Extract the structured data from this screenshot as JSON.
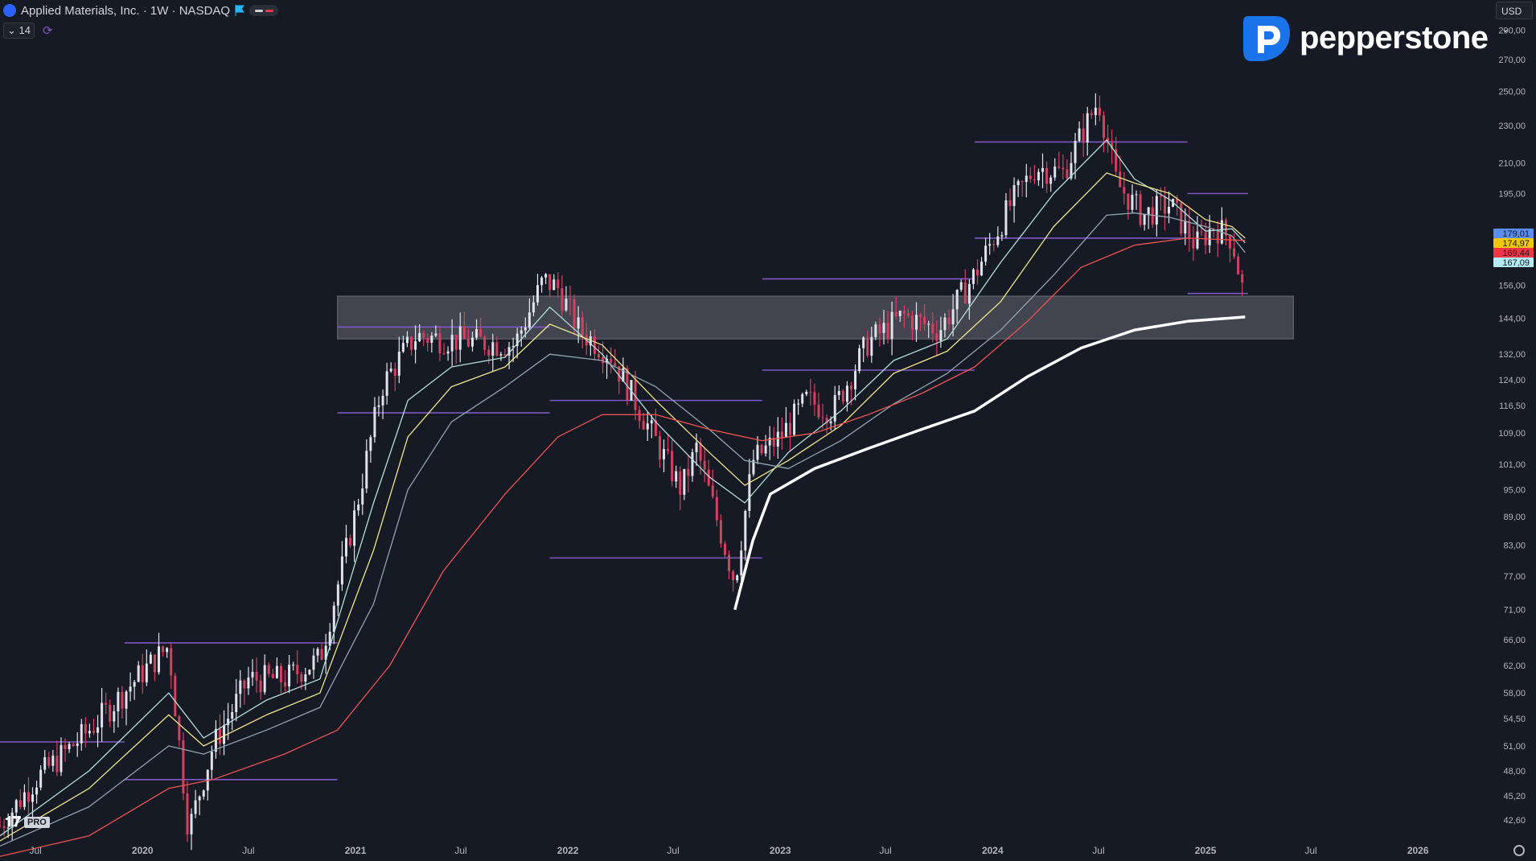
{
  "header": {
    "title": "Applied Materials, Inc. · 1W · NASDAQ",
    "indicator_count": "14",
    "currency": "USD"
  },
  "brand": {
    "name": "pepperstone"
  },
  "footer": {
    "logo_badge": "PRO"
  },
  "chart_data": {
    "type": "candlestick",
    "y_scale": "log",
    "ylim": [
      40.5,
      300
    ],
    "y_ticks": [
      290,
      270,
      250,
      230,
      210,
      195,
      179.01,
      174.97,
      169.44,
      167.09,
      156,
      144,
      132,
      124,
      116.5,
      109,
      101,
      95,
      89,
      83,
      77,
      71,
      66,
      62,
      58,
      54.5,
      51,
      48,
      45.2,
      42.6
    ],
    "y_tick_labels": [
      "290,00",
      "270,00",
      "250,00",
      "230,00",
      "210,00",
      "195,00",
      "156,00",
      "144,00",
      "132,00",
      "124,00",
      "116,50",
      "109,00",
      "101,00",
      "95,00",
      "89,00",
      "83,00",
      "77,00",
      "71,00",
      "66,00",
      "62,00",
      "58,00",
      "54,50",
      "51,00",
      "48,00",
      "45,20",
      "42,60"
    ],
    "x_range": [
      "2019-05-01",
      "2026-05-01"
    ],
    "x_ticks": [
      "2019-07-01",
      "2020-01-01",
      "2020-07-01",
      "2021-01-01",
      "2021-07-01",
      "2022-01-01",
      "2022-07-01",
      "2023-01-01",
      "2023-07-01",
      "2024-01-01",
      "2024-07-01",
      "2025-01-01",
      "2025-07-01",
      "2026-01-01"
    ],
    "x_tick_labels": [
      "Jul",
      "2020",
      "Jul",
      "2021",
      "Jul",
      "2022",
      "Jul",
      "2023",
      "Jul",
      "2024",
      "Jul",
      "2025",
      "Jul",
      "2026"
    ],
    "price_path": [
      [
        "2019-05-01",
        42
      ],
      [
        "2019-07-01",
        47
      ],
      [
        "2019-10-01",
        53
      ],
      [
        "2020-01-01",
        61
      ],
      [
        "2020-02-15",
        65
      ],
      [
        "2020-03-20",
        41.5
      ],
      [
        "2020-05-01",
        51
      ],
      [
        "2020-07-01",
        60
      ],
      [
        "2020-09-01",
        60
      ],
      [
        "2020-11-01",
        63
      ],
      [
        "2021-01-01",
        90
      ],
      [
        "2021-02-15",
        122
      ],
      [
        "2021-03-15",
        130
      ],
      [
        "2021-04-15",
        138
      ],
      [
        "2021-06-01",
        137
      ],
      [
        "2021-08-01",
        136
      ],
      [
        "2021-10-01",
        135
      ],
      [
        "2021-11-20",
        158
      ],
      [
        "2021-12-15",
        155
      ],
      [
        "2022-01-20",
        140
      ],
      [
        "2022-03-15",
        132
      ],
      [
        "2022-05-15",
        112
      ],
      [
        "2022-07-15",
        95
      ],
      [
        "2022-08-10",
        105
      ],
      [
        "2022-09-15",
        88
      ],
      [
        "2022-10-15",
        76
      ],
      [
        "2022-11-15",
        102
      ],
      [
        "2023-01-01",
        108
      ],
      [
        "2023-02-15",
        118
      ],
      [
        "2023-04-01",
        115
      ],
      [
        "2023-06-01",
        136
      ],
      [
        "2023-08-01",
        145
      ],
      [
        "2023-10-01",
        140
      ],
      [
        "2023-12-01",
        160
      ],
      [
        "2024-02-01",
        190
      ],
      [
        "2024-03-15",
        208
      ],
      [
        "2024-05-01",
        205
      ],
      [
        "2024-07-01",
        245
      ],
      [
        "2024-08-01",
        200
      ],
      [
        "2024-09-15",
        185
      ],
      [
        "2024-11-01",
        190
      ],
      [
        "2024-12-15",
        172
      ],
      [
        "2025-01-15",
        180
      ],
      [
        "2025-02-15",
        175
      ],
      [
        "2025-03-10",
        150
      ]
    ],
    "moving_averages": [
      {
        "color": "#b2dfdb",
        "values": [
          [
            "2019-05-01",
            41
          ],
          [
            "2019-10-01",
            48
          ],
          [
            "2020-02-15",
            58
          ],
          [
            "2020-04-15",
            52
          ],
          [
            "2020-08-01",
            57
          ],
          [
            "2020-11-01",
            60
          ],
          [
            "2021-02-01",
            92
          ],
          [
            "2021-04-01",
            118
          ],
          [
            "2021-06-15",
            128
          ],
          [
            "2021-09-15",
            131
          ],
          [
            "2021-12-01",
            148
          ],
          [
            "2022-03-01",
            132
          ],
          [
            "2022-06-01",
            112
          ],
          [
            "2022-09-01",
            98
          ],
          [
            "2022-11-01",
            92
          ],
          [
            "2023-01-15",
            104
          ],
          [
            "2023-04-15",
            115
          ],
          [
            "2023-07-15",
            130
          ],
          [
            "2023-10-15",
            137
          ],
          [
            "2024-01-15",
            165
          ],
          [
            "2024-04-15",
            195
          ],
          [
            "2024-07-15",
            222
          ],
          [
            "2024-09-01",
            202
          ],
          [
            "2024-11-01",
            192
          ],
          [
            "2025-01-01",
            178
          ],
          [
            "2025-02-15",
            179
          ],
          [
            "2025-03-10",
            173
          ]
        ]
      },
      {
        "color": "#f0e68c",
        "values": [
          [
            "2019-05-01",
            40.5
          ],
          [
            "2019-10-01",
            46
          ],
          [
            "2020-02-15",
            55
          ],
          [
            "2020-04-15",
            51
          ],
          [
            "2020-08-01",
            55
          ],
          [
            "2020-11-01",
            58
          ],
          [
            "2021-02-01",
            82
          ],
          [
            "2021-04-01",
            108
          ],
          [
            "2021-06-15",
            122
          ],
          [
            "2021-09-15",
            128
          ],
          [
            "2021-12-01",
            142
          ],
          [
            "2022-03-01",
            135
          ],
          [
            "2022-06-01",
            118
          ],
          [
            "2022-09-01",
            104
          ],
          [
            "2022-11-01",
            96
          ],
          [
            "2023-01-15",
            102
          ],
          [
            "2023-04-15",
            111
          ],
          [
            "2023-07-15",
            126
          ],
          [
            "2023-10-15",
            133
          ],
          [
            "2024-01-15",
            150
          ],
          [
            "2024-04-15",
            180
          ],
          [
            "2024-07-15",
            205
          ],
          [
            "2024-09-01",
            200
          ],
          [
            "2024-11-01",
            195
          ],
          [
            "2025-01-01",
            183
          ],
          [
            "2025-02-15",
            180
          ],
          [
            "2025-03-10",
            175
          ]
        ]
      },
      {
        "color": "#90a4ae",
        "values": [
          [
            "2019-05-01",
            40
          ],
          [
            "2019-10-01",
            44
          ],
          [
            "2020-02-15",
            51
          ],
          [
            "2020-04-15",
            50
          ],
          [
            "2020-08-01",
            53
          ],
          [
            "2020-11-01",
            56
          ],
          [
            "2021-02-01",
            72
          ],
          [
            "2021-04-01",
            95
          ],
          [
            "2021-06-15",
            112
          ],
          [
            "2021-09-15",
            122
          ],
          [
            "2021-12-01",
            132
          ],
          [
            "2022-03-01",
            130
          ],
          [
            "2022-06-01",
            122
          ],
          [
            "2022-09-01",
            110
          ],
          [
            "2022-11-01",
            102
          ],
          [
            "2023-01-15",
            100
          ],
          [
            "2023-04-15",
            107
          ],
          [
            "2023-07-15",
            117
          ],
          [
            "2023-10-15",
            126
          ],
          [
            "2024-01-15",
            140
          ],
          [
            "2024-04-15",
            160
          ],
          [
            "2024-07-15",
            185
          ],
          [
            "2024-09-01",
            186
          ],
          [
            "2024-11-01",
            184
          ],
          [
            "2025-01-01",
            180
          ],
          [
            "2025-02-15",
            176
          ],
          [
            "2025-03-10",
            169
          ]
        ]
      },
      {
        "color": "#ef5350",
        "values": [
          [
            "2019-05-01",
            39
          ],
          [
            "2019-10-01",
            41
          ],
          [
            "2020-02-15",
            46
          ],
          [
            "2020-05-01",
            47
          ],
          [
            "2020-09-01",
            50
          ],
          [
            "2020-12-01",
            53
          ],
          [
            "2021-03-01",
            62
          ],
          [
            "2021-06-01",
            78
          ],
          [
            "2021-09-15",
            94
          ],
          [
            "2021-12-15",
            108
          ],
          [
            "2022-03-01",
            114
          ],
          [
            "2022-06-01",
            114
          ],
          [
            "2022-09-01",
            110
          ],
          [
            "2022-12-01",
            107
          ],
          [
            "2023-03-01",
            109
          ],
          [
            "2023-06-01",
            114
          ],
          [
            "2023-09-01",
            120
          ],
          [
            "2023-12-01",
            128
          ],
          [
            "2024-03-01",
            143
          ],
          [
            "2024-06-01",
            163
          ],
          [
            "2024-09-01",
            172
          ],
          [
            "2024-12-01",
            175
          ],
          [
            "2025-03-10",
            174
          ]
        ]
      },
      {
        "color": "#ffffff",
        "values": [
          [
            "2022-10-15",
            71
          ],
          [
            "2022-11-15",
            84
          ],
          [
            "2022-12-15",
            94
          ],
          [
            "2023-03-01",
            100
          ],
          [
            "2023-06-01",
            105
          ],
          [
            "2023-09-01",
            110
          ],
          [
            "2023-12-01",
            115
          ],
          [
            "2024-03-01",
            125
          ],
          [
            "2024-06-01",
            134
          ],
          [
            "2024-09-01",
            140
          ],
          [
            "2024-12-01",
            143
          ],
          [
            "2025-03-10",
            144.5
          ]
        ]
      }
    ],
    "horizontal_levels": [
      {
        "from": "2019-05-01",
        "to": "2019-12-01",
        "y": 51.5
      },
      {
        "from": "2019-12-01",
        "to": "2020-12-01",
        "y": 65.5
      },
      {
        "from": "2019-12-01",
        "to": "2020-12-01",
        "y": 47
      },
      {
        "from": "2020-12-01",
        "to": "2021-12-01",
        "y": 141
      },
      {
        "from": "2020-12-01",
        "to": "2021-12-01",
        "y": 114.5
      },
      {
        "from": "2021-12-01",
        "to": "2022-12-01",
        "y": 118
      },
      {
        "from": "2021-12-01",
        "to": "2022-12-01",
        "y": 80.5
      },
      {
        "from": "2022-12-01",
        "to": "2023-12-01",
        "y": 158.5
      },
      {
        "from": "2022-12-01",
        "to": "2023-12-01",
        "y": 127
      },
      {
        "from": "2023-12-01",
        "to": "2024-12-01",
        "y": 221
      },
      {
        "from": "2023-12-01",
        "to": "2024-12-01",
        "y": 175
      },
      {
        "from": "2024-12-01",
        "to": "2025-03-15",
        "y": 195
      },
      {
        "from": "2024-12-01",
        "to": "2025-03-15",
        "y": 153
      }
    ],
    "support_zone": {
      "from": "2020-12-01",
      "to": "2025-06-01",
      "y_low": 137,
      "y_high": 152
    },
    "price_badges": [
      {
        "label": "179,01",
        "value": 179.01,
        "color": "#5b8def"
      },
      {
        "label": "174,97",
        "value": 174.97,
        "color": "#f0c808"
      },
      {
        "label": "169,44",
        "value": 169.44,
        "color": "#f23645"
      },
      {
        "label": "167,09",
        "value": 167.09,
        "color": "#b2ebf2"
      }
    ],
    "colors": {
      "up": "#e0e3eb",
      "down": "#d5405e",
      "level": "#7e57c2",
      "axis_text": "#b2b5be",
      "background": "#161a25"
    }
  }
}
